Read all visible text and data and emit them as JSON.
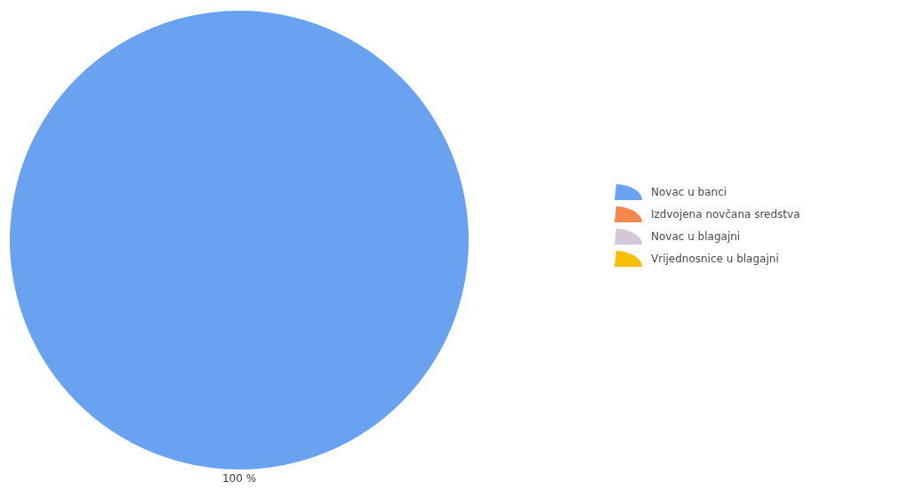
{
  "chart_data": {
    "type": "pie",
    "categories": [
      "Novac u banci",
      "Izdvojena novčana sredstva",
      "Novac u blagajni",
      "Vrijednosnice u blagajni"
    ],
    "values": [
      100,
      0,
      0,
      0
    ],
    "colors": [
      "#6aa2f2",
      "#f4884c",
      "#d6c6da",
      "#f6c000"
    ],
    "value_labels": [
      "100 %",
      null,
      null,
      null
    ],
    "legend": "right"
  }
}
